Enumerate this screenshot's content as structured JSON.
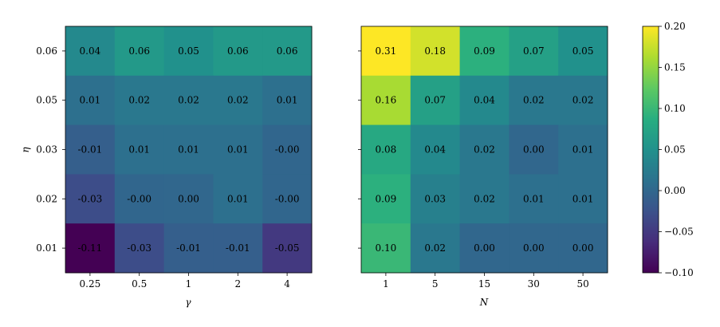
{
  "chart_data": [
    {
      "type": "heatmap",
      "x_categories": [
        "0.25",
        "0.5",
        "1",
        "2",
        "4"
      ],
      "y_categories": [
        "0.06",
        "0.05",
        "0.03",
        "0.02",
        "0.01"
      ],
      "values": [
        [
          0.04,
          0.06,
          0.05,
          0.06,
          0.06
        ],
        [
          0.01,
          0.02,
          0.02,
          0.02,
          0.01
        ],
        [
          -0.01,
          0.01,
          0.01,
          0.01,
          -0.001
        ],
        [
          -0.03,
          -0.001,
          0.0,
          0.01,
          -0.001
        ],
        [
          -0.11,
          -0.03,
          -0.01,
          -0.01,
          -0.05
        ]
      ],
      "cell_labels": [
        [
          "0.04",
          "0.06",
          "0.05",
          "0.06",
          "0.06"
        ],
        [
          "0.01",
          "0.02",
          "0.02",
          "0.02",
          "0.01"
        ],
        [
          "-0.01",
          "0.01",
          "0.01",
          "0.01",
          "-0.00"
        ],
        [
          "-0.03",
          "-0.00",
          "0.00",
          "0.01",
          "-0.00"
        ],
        [
          "-0.11",
          "-0.03",
          "-0.01",
          "-0.01",
          "-0.05"
        ]
      ],
      "xlabel": "γ",
      "ylabel": "η"
    },
    {
      "type": "heatmap",
      "x_categories": [
        "1",
        "5",
        "15",
        "30",
        "50"
      ],
      "y_categories": [
        "0.06",
        "0.05",
        "0.03",
        "0.02",
        "0.01"
      ],
      "values": [
        [
          0.31,
          0.18,
          0.09,
          0.07,
          0.05
        ],
        [
          0.16,
          0.07,
          0.04,
          0.02,
          0.02
        ],
        [
          0.08,
          0.04,
          0.02,
          0.0,
          0.01
        ],
        [
          0.09,
          0.03,
          0.02,
          0.01,
          0.01
        ],
        [
          0.1,
          0.02,
          0.0,
          0.0,
          0.0
        ]
      ],
      "cell_labels": [
        [
          "0.31",
          "0.18",
          "0.09",
          "0.07",
          "0.05"
        ],
        [
          "0.16",
          "0.07",
          "0.04",
          "0.02",
          "0.02"
        ],
        [
          "0.08",
          "0.04",
          "0.02",
          "0.00",
          "0.01"
        ],
        [
          "0.09",
          "0.03",
          "0.02",
          "0.01",
          "0.01"
        ],
        [
          "0.10",
          "0.02",
          "0.00",
          "0.00",
          "0.00"
        ]
      ],
      "xlabel": "N",
      "ylabel": ""
    }
  ],
  "colorbar": {
    "colormap": "viridis",
    "range": [
      -0.1,
      0.2
    ],
    "ticks": [
      -0.1,
      -0.05,
      0.0,
      0.05,
      0.1,
      0.15,
      0.2
    ],
    "tick_labels": [
      "−0.10",
      "−0.05",
      "0.00",
      "0.05",
      "0.10",
      "0.15",
      "0.20"
    ]
  }
}
